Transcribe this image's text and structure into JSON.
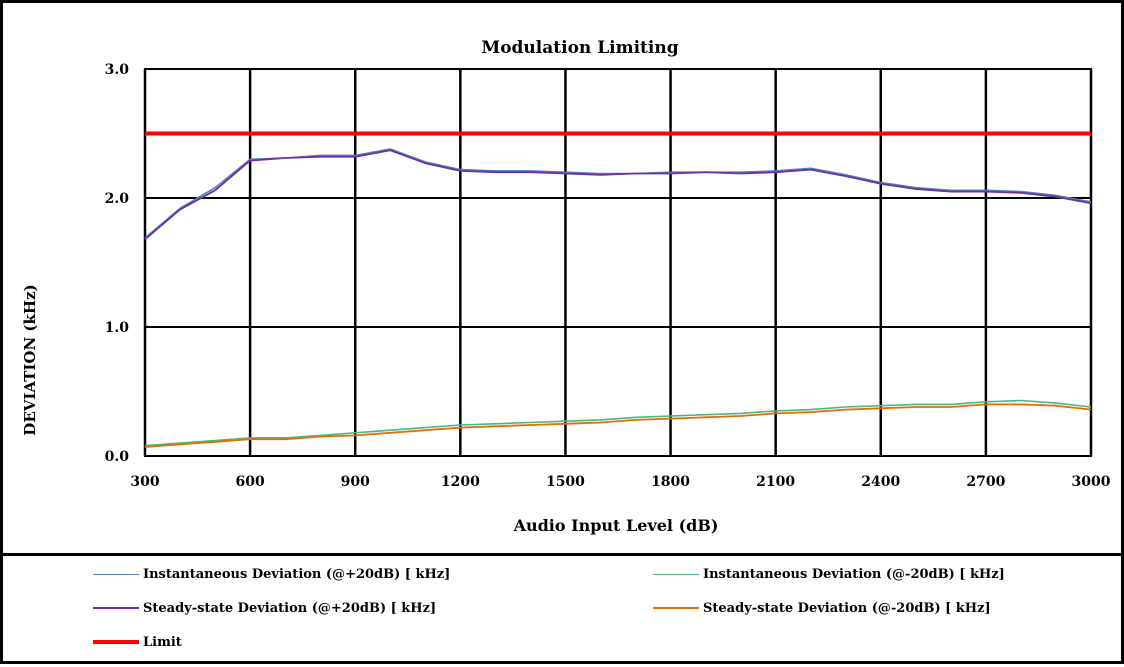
{
  "chart_data": {
    "type": "line",
    "title": "Modulation Limiting",
    "xlabel": "Audio Input Level (dB)",
    "ylabel": "DEVIATION (kHz)",
    "xlim": [
      300,
      3000
    ],
    "ylim": [
      0,
      3
    ],
    "x_ticks": [
      "300",
      "600",
      "900",
      "1200",
      "1500",
      "1800",
      "2100",
      "2400",
      "2700",
      "3000"
    ],
    "y_ticks": [
      "0.0",
      "1.0",
      "2.0",
      "3.0"
    ],
    "grid": true,
    "legend_position": "bottom",
    "x": [
      300,
      400,
      500,
      600,
      700,
      800,
      900,
      1000,
      1100,
      1200,
      1300,
      1400,
      1500,
      1600,
      1700,
      1800,
      1900,
      2000,
      2100,
      2200,
      2300,
      2400,
      2500,
      2600,
      2700,
      2800,
      2900,
      3000
    ],
    "series": [
      {
        "name": "Instantaneous Deviation (@+20dB) [ kHz]",
        "color": "#4f81bd",
        "values": [
          1.69,
          1.92,
          2.08,
          2.3,
          2.31,
          2.33,
          2.33,
          2.38,
          2.28,
          2.22,
          2.21,
          2.21,
          2.2,
          2.19,
          2.19,
          2.2,
          2.2,
          2.2,
          2.21,
          2.23,
          2.18,
          2.12,
          2.08,
          2.06,
          2.06,
          2.05,
          2.02,
          1.97
        ]
      },
      {
        "name": "Instantaneous Deviation (@-20dB) [ kHz]",
        "color": "#4bb77f",
        "values": [
          0.08,
          0.1,
          0.12,
          0.14,
          0.14,
          0.16,
          0.18,
          0.2,
          0.22,
          0.24,
          0.25,
          0.26,
          0.27,
          0.28,
          0.3,
          0.31,
          0.32,
          0.33,
          0.35,
          0.36,
          0.38,
          0.39,
          0.4,
          0.4,
          0.42,
          0.43,
          0.41,
          0.38
        ]
      },
      {
        "name": "Steady-state Deviation (@+20dB) [ kHz]",
        "color": "#7030a0",
        "values": [
          1.68,
          1.91,
          2.06,
          2.29,
          2.31,
          2.32,
          2.32,
          2.37,
          2.27,
          2.21,
          2.2,
          2.2,
          2.19,
          2.18,
          2.19,
          2.19,
          2.2,
          2.19,
          2.2,
          2.22,
          2.17,
          2.11,
          2.07,
          2.05,
          2.05,
          2.04,
          2.01,
          1.96
        ]
      },
      {
        "name": "Steady-state Deviation (@-20dB) [ kHz]",
        "color": "#e46c0a",
        "values": [
          0.07,
          0.09,
          0.11,
          0.13,
          0.13,
          0.15,
          0.16,
          0.18,
          0.2,
          0.22,
          0.23,
          0.24,
          0.25,
          0.26,
          0.28,
          0.29,
          0.3,
          0.31,
          0.33,
          0.34,
          0.36,
          0.37,
          0.38,
          0.38,
          0.4,
          0.4,
          0.39,
          0.36
        ]
      },
      {
        "name": "Limit",
        "color": "#ff0000",
        "values": [
          2.5,
          2.5,
          2.5,
          2.5,
          2.5,
          2.5,
          2.5,
          2.5,
          2.5,
          2.5,
          2.5,
          2.5,
          2.5,
          2.5,
          2.5,
          2.5,
          2.5,
          2.5,
          2.5,
          2.5,
          2.5,
          2.5,
          2.5,
          2.5,
          2.5,
          2.5,
          2.5,
          2.5
        ]
      }
    ]
  }
}
